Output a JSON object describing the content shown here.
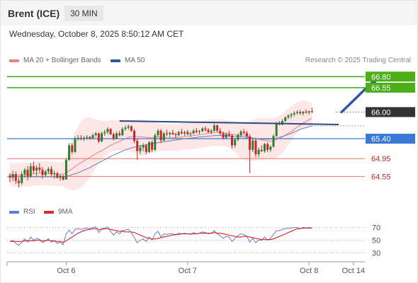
{
  "header": {
    "instrument": "Brent (ICE)",
    "timeframe": "30 MIN",
    "datetime": "Wednesday, October 8, 2025 8:50:12 AM CET"
  },
  "legend": {
    "ma20_label": "MA 20 + Bollinger Bands",
    "ma50_label": "MA 50",
    "copyright": "Research © 2025 Trading Central"
  },
  "rsi_legend": {
    "rsi_label": "RSI",
    "ma_label": "9MA"
  },
  "colors": {
    "ma20": "#f08080",
    "ma50": "#2c5aa0",
    "bull": "#2e7d32",
    "bear": "#c62828",
    "resistance": "#4caf1a",
    "support_blue": "#3a78d8",
    "support_red": "#e57373",
    "band_fill": "#fde3e3",
    "rsi": "#5b7fd8",
    "rsi_ma": "#d32f2f"
  },
  "chart_data": [
    {
      "type": "candlestick",
      "y_axis_range": [
        64.22,
        66.98
      ],
      "x_ticks": [
        {
          "label": "Oct 6",
          "bar": 19
        },
        {
          "label": "Oct 7",
          "bar": 60
        },
        {
          "label": "Oct 8",
          "bar": 101
        },
        {
          "label": "Oct 14",
          "bar": 116
        }
      ],
      "levels": [
        {
          "value": 66.8,
          "label": "66.80",
          "kind": "resistance"
        },
        {
          "value": 66.55,
          "label": "66.55",
          "kind": "resistance"
        },
        {
          "value": 66.0,
          "label": "66.00",
          "kind": "current"
        },
        {
          "value": 65.4,
          "label": "65.40",
          "kind": "support_blue"
        },
        {
          "value": 64.95,
          "label": "64.95",
          "kind": "support_red"
        },
        {
          "value": 64.55,
          "label": "64.55",
          "kind": "support_red"
        }
      ],
      "candles": [
        [
          64.57,
          64.62,
          64.42,
          64.52
        ],
        [
          64.52,
          64.68,
          64.44,
          64.6
        ],
        [
          64.6,
          64.66,
          64.38,
          64.45
        ],
        [
          64.45,
          64.52,
          64.3,
          64.4
        ],
        [
          64.4,
          64.66,
          64.36,
          64.6
        ],
        [
          64.6,
          64.74,
          64.52,
          64.7
        ],
        [
          64.7,
          64.78,
          64.46,
          64.55
        ],
        [
          64.55,
          64.85,
          64.52,
          64.78
        ],
        [
          64.78,
          64.88,
          64.62,
          64.68
        ],
        [
          64.68,
          64.8,
          64.55,
          64.75
        ],
        [
          64.75,
          64.85,
          64.64,
          64.7
        ],
        [
          64.7,
          64.76,
          64.5,
          64.58
        ],
        [
          64.58,
          64.7,
          64.55,
          64.66
        ],
        [
          64.66,
          64.76,
          64.6,
          64.72
        ],
        [
          64.72,
          64.78,
          64.55,
          64.6
        ],
        [
          64.6,
          64.68,
          64.5,
          64.62
        ],
        [
          64.62,
          64.65,
          64.5,
          64.52
        ],
        [
          64.52,
          64.6,
          64.45,
          64.56
        ],
        [
          64.56,
          64.58,
          64.46,
          64.48
        ],
        [
          64.48,
          64.96,
          64.48,
          64.92
        ],
        [
          64.92,
          65.3,
          64.9,
          65.25
        ],
        [
          65.25,
          65.3,
          65.05,
          65.1
        ],
        [
          65.1,
          65.45,
          65.08,
          65.4
        ],
        [
          65.4,
          65.48,
          65.35,
          65.42
        ],
        [
          65.42,
          65.48,
          65.36,
          65.4
        ],
        [
          65.4,
          65.46,
          65.34,
          65.42
        ],
        [
          65.42,
          65.48,
          65.38,
          65.44
        ],
        [
          65.44,
          65.46,
          65.38,
          65.41
        ],
        [
          65.41,
          65.52,
          65.39,
          65.48
        ],
        [
          65.48,
          65.56,
          65.44,
          65.52
        ],
        [
          65.52,
          65.54,
          65.3,
          65.34
        ],
        [
          65.34,
          65.56,
          65.32,
          65.52
        ],
        [
          65.52,
          65.6,
          65.46,
          65.55
        ],
        [
          65.55,
          65.66,
          65.5,
          65.62
        ],
        [
          65.62,
          65.64,
          65.48,
          65.5
        ],
        [
          65.5,
          65.54,
          65.36,
          65.4
        ],
        [
          65.4,
          65.56,
          65.38,
          65.52
        ],
        [
          65.52,
          65.58,
          65.45,
          65.48
        ],
        [
          65.48,
          65.66,
          65.46,
          65.62
        ],
        [
          65.62,
          65.7,
          65.58,
          65.65
        ],
        [
          65.65,
          65.72,
          65.6,
          65.68
        ],
        [
          65.68,
          65.7,
          65.55,
          65.58
        ],
        [
          65.58,
          65.62,
          65.3,
          65.35
        ],
        [
          65.35,
          65.4,
          64.92,
          65.12
        ],
        [
          65.12,
          65.26,
          65.05,
          65.2
        ],
        [
          65.2,
          65.3,
          65.12,
          65.25
        ],
        [
          65.25,
          65.28,
          65.05,
          65.1
        ],
        [
          65.1,
          65.35,
          65.08,
          65.32
        ],
        [
          65.32,
          65.36,
          65.1,
          65.15
        ],
        [
          65.15,
          65.52,
          65.12,
          65.48
        ],
        [
          65.48,
          65.62,
          65.44,
          65.58
        ],
        [
          65.58,
          65.62,
          65.3,
          65.36
        ],
        [
          65.36,
          65.55,
          65.34,
          65.52
        ],
        [
          65.52,
          65.6,
          65.46,
          65.5
        ],
        [
          65.5,
          65.56,
          65.44,
          65.53
        ],
        [
          65.53,
          65.6,
          65.48,
          65.5
        ],
        [
          65.5,
          65.54,
          65.42,
          65.48
        ],
        [
          65.48,
          65.58,
          65.46,
          65.55
        ],
        [
          65.55,
          65.62,
          65.5,
          65.52
        ],
        [
          65.52,
          65.58,
          65.46,
          65.55
        ],
        [
          65.55,
          65.6,
          65.48,
          65.5
        ],
        [
          65.5,
          65.56,
          65.44,
          65.52
        ],
        [
          65.52,
          65.62,
          65.5,
          65.58
        ],
        [
          65.58,
          65.64,
          65.52,
          65.55
        ],
        [
          65.55,
          65.6,
          65.5,
          65.57
        ],
        [
          65.57,
          65.66,
          65.55,
          65.63
        ],
        [
          65.63,
          65.68,
          65.56,
          65.6
        ],
        [
          65.6,
          65.64,
          65.52,
          65.55
        ],
        [
          65.55,
          65.62,
          65.5,
          65.58
        ],
        [
          65.58,
          65.74,
          65.56,
          65.7
        ],
        [
          65.7,
          65.72,
          65.55,
          65.58
        ],
        [
          65.58,
          65.64,
          65.48,
          65.52
        ],
        [
          65.52,
          65.56,
          65.38,
          65.42
        ],
        [
          65.42,
          65.54,
          65.4,
          65.5
        ],
        [
          65.5,
          65.58,
          65.44,
          65.47
        ],
        [
          65.47,
          65.5,
          65.18,
          65.25
        ],
        [
          65.25,
          65.42,
          65.2,
          65.38
        ],
        [
          65.38,
          65.52,
          65.34,
          65.48
        ],
        [
          65.48,
          65.6,
          65.44,
          65.56
        ],
        [
          65.56,
          65.62,
          65.5,
          65.53
        ],
        [
          65.53,
          65.58,
          65.4,
          65.45
        ],
        [
          65.45,
          65.5,
          64.62,
          65.15
        ],
        [
          65.15,
          65.4,
          65.1,
          65.36
        ],
        [
          65.36,
          65.42,
          64.98,
          65.05
        ],
        [
          65.05,
          65.2,
          64.98,
          65.15
        ],
        [
          65.15,
          65.25,
          65.1,
          65.12
        ],
        [
          65.12,
          65.3,
          65.08,
          65.28
        ],
        [
          65.28,
          65.32,
          65.1,
          65.15
        ],
        [
          65.15,
          65.25,
          65.1,
          65.22
        ],
        [
          65.22,
          65.5,
          65.2,
          65.46
        ],
        [
          65.46,
          65.78,
          65.44,
          65.75
        ],
        [
          65.75,
          65.8,
          65.7,
          65.72
        ],
        [
          65.72,
          65.84,
          65.7,
          65.8
        ],
        [
          65.8,
          65.9,
          65.78,
          65.88
        ],
        [
          65.88,
          65.95,
          65.84,
          65.92
        ],
        [
          65.92,
          65.98,
          65.86,
          65.95
        ],
        [
          65.95,
          66.02,
          65.9,
          65.98
        ],
        [
          65.98,
          66.04,
          65.94,
          66.0
        ],
        [
          66.0,
          66.05,
          65.94,
          65.97
        ],
        [
          65.97,
          66.02,
          65.92,
          66.01
        ],
        [
          66.01,
          66.06,
          65.96,
          65.99
        ],
        [
          65.99,
          66.03,
          65.94,
          66.02
        ],
        [
          66.02,
          66.1,
          65.98,
          66.0
        ]
      ],
      "ma20": [
        64.6,
        64.59,
        64.58,
        64.58,
        64.58,
        64.59,
        64.59,
        64.6,
        64.61,
        64.62,
        64.62,
        64.62,
        64.62,
        64.62,
        64.61,
        64.61,
        64.6,
        64.6,
        64.6,
        64.63,
        64.68,
        64.72,
        64.77,
        64.82,
        64.86,
        64.9,
        64.94,
        64.98,
        65.02,
        65.06,
        65.1,
        65.13,
        65.17,
        65.21,
        65.25,
        65.28,
        65.31,
        65.34,
        65.37,
        65.4,
        65.43,
        65.45,
        65.46,
        65.45,
        65.44,
        65.44,
        65.43,
        65.43,
        65.42,
        65.43,
        65.44,
        65.43,
        65.43,
        65.43,
        65.43,
        65.43,
        65.43,
        65.43,
        65.44,
        65.45,
        65.46,
        65.46,
        65.47,
        65.48,
        65.49,
        65.5,
        65.51,
        65.52,
        65.53,
        65.54,
        65.54,
        65.54,
        65.53,
        65.52,
        65.51,
        65.5,
        65.49,
        65.48,
        65.48,
        65.48,
        65.47,
        65.44,
        65.42,
        65.4,
        65.38,
        65.37,
        65.36,
        65.35,
        65.34,
        65.35,
        65.38,
        65.41,
        65.44,
        65.48,
        65.52,
        65.56,
        65.61,
        65.66,
        65.7,
        65.75,
        65.79,
        65.83,
        65.86
      ],
      "bb_upper": [
        64.85,
        64.85,
        64.85,
        64.85,
        64.85,
        64.86,
        64.86,
        64.87,
        64.88,
        64.89,
        64.89,
        64.89,
        64.89,
        64.89,
        64.88,
        64.88,
        64.87,
        64.87,
        64.87,
        65.0,
        65.2,
        65.38,
        65.55,
        65.68,
        65.78,
        65.85,
        65.88,
        65.88,
        65.86,
        65.84,
        65.82,
        65.8,
        65.8,
        65.8,
        65.81,
        65.82,
        65.82,
        65.82,
        65.82,
        65.82,
        65.82,
        65.82,
        65.83,
        65.84,
        65.84,
        65.83,
        65.82,
        65.8,
        65.78,
        65.76,
        65.75,
        65.74,
        65.73,
        65.73,
        65.73,
        65.73,
        65.73,
        65.73,
        65.74,
        65.75,
        65.76,
        65.76,
        65.77,
        65.78,
        65.79,
        65.8,
        65.81,
        65.82,
        65.83,
        65.84,
        65.84,
        65.84,
        65.83,
        65.82,
        65.81,
        65.8,
        65.79,
        65.78,
        65.78,
        65.78,
        65.78,
        65.8,
        65.82,
        65.84,
        65.86,
        65.86,
        65.86,
        65.86,
        65.86,
        65.86,
        65.88,
        65.92,
        65.96,
        66.02,
        66.08,
        66.14,
        66.18,
        66.22,
        66.24,
        66.26,
        66.25,
        66.23,
        66.2
      ],
      "bb_lower": [
        64.35,
        64.33,
        64.31,
        64.31,
        64.31,
        64.32,
        64.32,
        64.33,
        64.34,
        64.35,
        64.35,
        64.35,
        64.35,
        64.35,
        64.34,
        64.34,
        64.33,
        64.33,
        64.33,
        64.28,
        64.26,
        64.24,
        64.24,
        64.26,
        64.3,
        64.36,
        64.44,
        64.54,
        64.64,
        64.74,
        64.84,
        64.92,
        65.0,
        65.06,
        65.1,
        65.12,
        65.14,
        65.14,
        65.14,
        65.13,
        65.12,
        65.1,
        65.08,
        65.05,
        65.02,
        65.02,
        65.04,
        65.06,
        65.08,
        65.1,
        65.12,
        65.12,
        65.13,
        65.13,
        65.13,
        65.13,
        65.13,
        65.13,
        65.14,
        65.15,
        65.16,
        65.16,
        65.17,
        65.18,
        65.19,
        65.2,
        65.21,
        65.22,
        65.23,
        65.24,
        65.24,
        65.24,
        65.23,
        65.22,
        65.2,
        65.16,
        65.1,
        65.02,
        64.96,
        64.92,
        64.9,
        64.9,
        64.9,
        64.9,
        64.91,
        64.92,
        64.93,
        64.94,
        64.95,
        64.96,
        64.98,
        65.02,
        65.08,
        65.16,
        65.26,
        65.36,
        65.46,
        65.54,
        65.6,
        65.64,
        65.66,
        65.68,
        65.7
      ],
      "ma50": [
        64.55,
        64.55,
        64.55,
        64.54,
        64.54,
        64.54,
        64.54,
        64.54,
        64.54,
        64.54,
        64.54,
        64.54,
        64.54,
        64.54,
        64.54,
        64.54,
        64.54,
        64.54,
        64.54,
        64.55,
        64.57,
        64.59,
        64.61,
        64.63,
        64.66,
        64.69,
        64.72,
        64.75,
        64.79,
        64.82,
        64.86,
        64.89,
        64.93,
        64.96,
        65.0,
        65.03,
        65.06,
        65.09,
        65.12,
        65.15,
        65.17,
        65.19,
        65.21,
        65.22,
        65.24,
        65.25,
        65.26,
        65.28,
        65.29,
        65.3,
        65.31,
        65.32,
        65.33,
        65.34,
        65.35,
        65.36,
        65.37,
        65.38,
        65.39,
        65.4,
        65.41,
        65.41,
        65.42,
        65.43,
        65.44,
        65.44,
        65.45,
        65.46,
        65.46,
        65.47,
        65.47,
        65.47,
        65.47,
        65.47,
        65.46,
        65.46,
        65.45,
        65.45,
        65.44,
        65.44,
        65.43,
        65.42,
        65.41,
        65.4,
        65.4,
        65.39,
        65.39,
        65.39,
        65.39,
        65.4,
        65.41,
        65.43,
        65.45,
        65.47,
        65.5,
        65.52,
        65.55,
        65.58,
        65.61,
        65.63,
        65.65,
        65.67,
        65.69
      ],
      "trendline": {
        "from": {
          "bar": 37,
          "value": 65.8
        },
        "to": {
          "bar": 111,
          "value": 65.72
        }
      },
      "forecast_arrow": {
        "from": {
          "bar": 112,
          "value": 66.0
        },
        "to": {
          "bar": 124,
          "value": 66.78
        }
      }
    },
    {
      "type": "line",
      "indicator": "RSI",
      "y_ticks": [
        70,
        50,
        30
      ],
      "rsi": [
        48,
        50,
        45,
        42,
        47,
        52,
        47,
        55,
        50,
        53,
        51,
        46,
        49,
        52,
        47,
        49,
        45,
        47,
        43,
        60,
        66,
        60,
        67,
        68,
        67,
        68,
        69,
        68,
        70,
        71,
        62,
        68,
        69,
        71,
        64,
        58,
        63,
        60,
        65,
        66,
        67,
        62,
        54,
        46,
        50,
        52,
        48,
        55,
        50,
        60,
        64,
        55,
        60,
        59,
        60,
        60,
        58,
        61,
        60,
        61,
        60,
        59,
        62,
        60,
        61,
        63,
        62,
        60,
        61,
        65,
        60,
        57,
        53,
        56,
        55,
        48,
        53,
        57,
        60,
        59,
        56,
        47,
        53,
        46,
        50,
        50,
        55,
        50,
        53,
        59,
        65,
        65,
        67,
        68,
        69,
        69,
        70,
        70,
        68,
        70,
        69,
        70,
        69
      ],
      "rsi_ma": [
        48,
        48,
        48,
        48,
        48,
        49,
        49,
        49,
        49,
        50,
        50,
        49,
        49,
        50,
        49,
        49,
        48,
        48,
        47,
        49,
        52,
        55,
        58,
        61,
        63,
        65,
        66,
        67,
        68,
        68,
        67,
        67,
        68,
        68,
        67,
        66,
        65,
        64,
        64,
        63,
        63,
        63,
        62,
        60,
        58,
        56,
        54,
        53,
        52,
        52,
        53,
        54,
        55,
        56,
        57,
        58,
        59,
        59,
        60,
        60,
        60,
        60,
        60,
        60,
        61,
        61,
        61,
        61,
        61,
        62,
        61,
        61,
        60,
        59,
        58,
        57,
        56,
        55,
        55,
        56,
        56,
        55,
        54,
        53,
        52,
        51,
        51,
        51,
        51,
        52,
        54,
        56,
        58,
        60,
        62,
        64,
        66,
        68,
        68,
        69,
        69,
        69,
        69
      ]
    }
  ]
}
